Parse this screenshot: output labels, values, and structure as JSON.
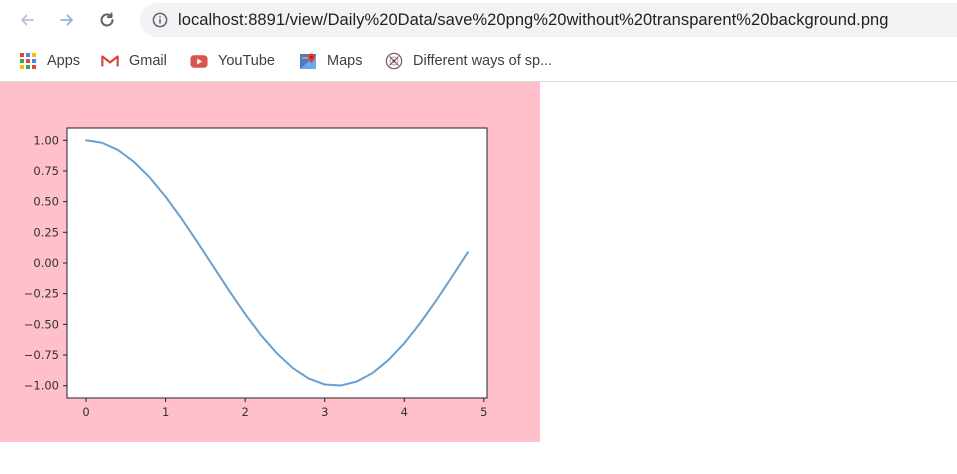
{
  "browser": {
    "url": "localhost:8891/view/Daily%20Data/save%20png%20without%20transparent%20background.png"
  },
  "bookmarks": [
    {
      "label": "Apps",
      "icon": "apps-grid-icon"
    },
    {
      "label": "Gmail",
      "icon": "gmail-icon"
    },
    {
      "label": "YouTube",
      "icon": "youtube-icon"
    },
    {
      "label": "Maps",
      "icon": "maps-icon"
    },
    {
      "label": "Different ways of sp...",
      "icon": "site-favicon-icon"
    }
  ],
  "colors": {
    "figure_background": "#ffc0cb",
    "line": "#6a9fd0"
  },
  "chart_data": {
    "type": "line",
    "title": "",
    "xlabel": "",
    "ylabel": "",
    "xlim": [
      -0.24,
      5.04
    ],
    "ylim": [
      -1.1,
      1.1
    ],
    "xticks": [
      0,
      1,
      2,
      3,
      4,
      5
    ],
    "xtick_labels": [
      "0",
      "1",
      "2",
      "3",
      "4",
      "5"
    ],
    "yticks": [
      1.0,
      0.75,
      0.5,
      0.25,
      0.0,
      -0.25,
      -0.5,
      -0.75,
      -1.0
    ],
    "ytick_labels": [
      "1.00",
      "0.75",
      "0.50",
      "0.25",
      "0.00",
      "−0.25",
      "−0.50",
      "−0.75",
      "−1.00"
    ],
    "grid": false,
    "series": [
      {
        "x": [
          0,
          0.2,
          0.4,
          0.6,
          0.8,
          1.0,
          1.2,
          1.4,
          1.6,
          1.8,
          2.0,
          2.2,
          2.4,
          2.6,
          2.8,
          3.0,
          3.2,
          3.4,
          3.6,
          3.8,
          4.0,
          4.2,
          4.4,
          4.6,
          4.8
        ],
        "y": [
          1.0,
          0.98,
          0.921,
          0.825,
          0.697,
          0.54,
          0.362,
          0.17,
          -0.029,
          -0.227,
          -0.416,
          -0.589,
          -0.737,
          -0.857,
          -0.942,
          -0.99,
          -0.998,
          -0.967,
          -0.897,
          -0.791,
          -0.654,
          -0.49,
          -0.307,
          -0.112,
          0.087
        ]
      }
    ]
  }
}
